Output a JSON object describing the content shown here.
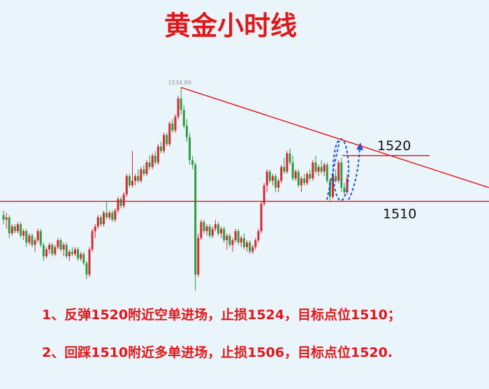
{
  "chart_data": {
    "type": "candlestick",
    "title": "黄金小时线",
    "annotations": [
      "1、反弹1520附近空单进场，止损1524，目标点位1510；",
      "2、回踩1510附近多单进场，止损1506，目标点位1520."
    ],
    "up_color": "#d9272e",
    "down_color": "#2e9e3e",
    "ylim": [
      1469,
      1554
    ],
    "peak_label": 1534.89,
    "levels": [
      1520,
      1510
    ],
    "trendline": {
      "x": [
        62,
        169.5
      ],
      "y": [
        1534.89,
        1513
      ]
    },
    "ohlc": [
      [
        1507,
        1508,
        1505,
        1506
      ],
      [
        1506,
        1507.5,
        1504,
        1506.5
      ],
      [
        1506.5,
        1507,
        1502,
        1503
      ],
      [
        1503,
        1505,
        1502.5,
        1504.5
      ],
      [
        1504.5,
        1505,
        1503,
        1503.5
      ],
      [
        1503.5,
        1505.5,
        1503,
        1505
      ],
      [
        1505,
        1505.5,
        1502,
        1502.5
      ],
      [
        1502.5,
        1504,
        1501.5,
        1503.5
      ],
      [
        1503.5,
        1504,
        1500,
        1501
      ],
      [
        1501,
        1503,
        1500.5,
        1502.5
      ],
      [
        1502.5,
        1503,
        1500,
        1500.5
      ],
      [
        1500.5,
        1502,
        1499,
        1501.5
      ],
      [
        1501.5,
        1504,
        1501,
        1503.5
      ],
      [
        1503.5,
        1504,
        1500,
        1500.5
      ],
      [
        1500.5,
        1501,
        1497,
        1498
      ],
      [
        1498,
        1500,
        1497.5,
        1499.5
      ],
      [
        1499.5,
        1501,
        1498.5,
        1500.5
      ],
      [
        1500.5,
        1501,
        1498,
        1498.5
      ],
      [
        1498.5,
        1500.5,
        1498,
        1500
      ],
      [
        1500,
        1502,
        1499.5,
        1501.5
      ],
      [
        1501.5,
        1502,
        1499,
        1499.5
      ],
      [
        1499.5,
        1501,
        1498,
        1500.5
      ],
      [
        1500.5,
        1501,
        1497.5,
        1498
      ],
      [
        1498,
        1499.5,
        1497,
        1499
      ],
      [
        1499,
        1500,
        1498,
        1498.5
      ],
      [
        1498.5,
        1500,
        1498,
        1499.5
      ],
      [
        1499.5,
        1500,
        1497,
        1497.5
      ],
      [
        1497.5,
        1499,
        1497,
        1498.5
      ],
      [
        1498.5,
        1499,
        1496,
        1496.5
      ],
      [
        1496.5,
        1497,
        1493,
        1494
      ],
      [
        1494,
        1500,
        1493.5,
        1499.5
      ],
      [
        1499.5,
        1504,
        1499,
        1503.5
      ],
      [
        1503.5,
        1505,
        1502,
        1504.5
      ],
      [
        1504.5,
        1507,
        1504,
        1506.5
      ],
      [
        1506.5,
        1507,
        1504.5,
        1505
      ],
      [
        1505,
        1508,
        1504.5,
        1507.5
      ],
      [
        1507.5,
        1510,
        1506,
        1506.5
      ],
      [
        1506.5,
        1508,
        1506,
        1507.5
      ],
      [
        1507.5,
        1508,
        1505.5,
        1506
      ],
      [
        1506,
        1508.5,
        1505.5,
        1508
      ],
      [
        1508,
        1511,
        1507.5,
        1510.5
      ],
      [
        1510.5,
        1511,
        1508.5,
        1509
      ],
      [
        1509,
        1512,
        1508.5,
        1511.5
      ],
      [
        1511.5,
        1516,
        1511,
        1515.5
      ],
      [
        1515.5,
        1516,
        1513,
        1513.5
      ],
      [
        1513.5,
        1521,
        1513,
        1514.5
      ],
      [
        1514.5,
        1516,
        1513.5,
        1515.5
      ],
      [
        1515.5,
        1517,
        1514,
        1514.5
      ],
      [
        1514.5,
        1517.5,
        1514,
        1517
      ],
      [
        1517,
        1518,
        1515.5,
        1516
      ],
      [
        1516,
        1519,
        1515.5,
        1518.5
      ],
      [
        1518.5,
        1520,
        1517,
        1517.5
      ],
      [
        1517.5,
        1520.5,
        1517,
        1520
      ],
      [
        1520,
        1521,
        1518,
        1518.5
      ],
      [
        1518.5,
        1522.5,
        1518,
        1522
      ],
      [
        1522,
        1523,
        1520.5,
        1521
      ],
      [
        1521,
        1525,
        1520.5,
        1524.5
      ],
      [
        1524.5,
        1525,
        1522,
        1522.5
      ],
      [
        1522.5,
        1527.5,
        1522,
        1527
      ],
      [
        1527,
        1528,
        1525,
        1525.5
      ],
      [
        1525.5,
        1529,
        1525,
        1528.5
      ],
      [
        1528.5,
        1533,
        1528,
        1532.5
      ],
      [
        1532.5,
        1534.89,
        1529,
        1530
      ],
      [
        1530,
        1531,
        1526,
        1526.5
      ],
      [
        1526.5,
        1528,
        1523,
        1524
      ],
      [
        1524,
        1525,
        1518,
        1519
      ],
      [
        1519,
        1520,
        1517,
        1518
      ],
      [
        1518,
        1518.5,
        1490.5,
        1494
      ],
      [
        1494,
        1503,
        1493.5,
        1502
      ],
      [
        1502,
        1506,
        1501.5,
        1505.5
      ],
      [
        1505.5,
        1506,
        1503,
        1503.5
      ],
      [
        1503.5,
        1505,
        1502.5,
        1504.5
      ],
      [
        1504.5,
        1505,
        1502,
        1502.5
      ],
      [
        1502.5,
        1504.5,
        1502,
        1504
      ],
      [
        1504,
        1506,
        1503.5,
        1505
      ],
      [
        1505,
        1505.5,
        1502.5,
        1503
      ],
      [
        1503,
        1504.5,
        1502,
        1504
      ],
      [
        1504,
        1504.5,
        1501,
        1501.5
      ],
      [
        1501.5,
        1503,
        1499.5,
        1502.5
      ],
      [
        1502.5,
        1503,
        1500,
        1500.5
      ],
      [
        1500.5,
        1502,
        1499,
        1501.5
      ],
      [
        1501.5,
        1504,
        1501,
        1503.5
      ],
      [
        1503.5,
        1504,
        1500.5,
        1501
      ],
      [
        1501,
        1502.5,
        1500,
        1502
      ],
      [
        1502,
        1503,
        1499.5,
        1500
      ],
      [
        1500,
        1501.5,
        1499,
        1501
      ],
      [
        1501,
        1501.5,
        1498.5,
        1499
      ],
      [
        1499,
        1500.5,
        1498.5,
        1500
      ],
      [
        1500,
        1502,
        1499.5,
        1501.5
      ],
      [
        1501.5,
        1504,
        1501,
        1503.5
      ],
      [
        1503.5,
        1510,
        1503,
        1509.5
      ],
      [
        1509.5,
        1514,
        1509,
        1513.5
      ],
      [
        1513.5,
        1517,
        1512,
        1516.5
      ],
      [
        1516.5,
        1517,
        1514,
        1514.5
      ],
      [
        1514.5,
        1516,
        1513.5,
        1515.5
      ],
      [
        1515.5,
        1516,
        1512,
        1513
      ],
      [
        1513,
        1515,
        1512,
        1514.5
      ],
      [
        1514.5,
        1518,
        1514,
        1517.5
      ],
      [
        1517.5,
        1519.5,
        1516,
        1516.5
      ],
      [
        1516.5,
        1521,
        1516,
        1520.5
      ],
      [
        1520.5,
        1521.5,
        1518,
        1518.5
      ],
      [
        1518.5,
        1520,
        1514.5,
        1515
      ],
      [
        1515,
        1517,
        1514.5,
        1516.5
      ],
      [
        1516.5,
        1517,
        1513,
        1513.5
      ],
      [
        1513.5,
        1515.5,
        1512,
        1515
      ],
      [
        1515,
        1516,
        1513.5,
        1514
      ],
      [
        1514,
        1516.5,
        1513.5,
        1516
      ],
      [
        1516,
        1517,
        1514.5,
        1515
      ],
      [
        1515,
        1519,
        1514.5,
        1518.5
      ],
      [
        1518.5,
        1520,
        1516,
        1516.5
      ],
      [
        1516.5,
        1518,
        1515.5,
        1517.5
      ],
      [
        1517.5,
        1519,
        1516,
        1516.5
      ],
      [
        1516.5,
        1518.5,
        1515.5,
        1518
      ],
      [
        1518,
        1518.5,
        1514,
        1514.5
      ],
      [
        1514.5,
        1515,
        1510,
        1511
      ],
      [
        1511,
        1516,
        1510.5,
        1515.5
      ],
      [
        1515.5,
        1517,
        1514,
        1514.5
      ],
      [
        1514.5,
        1519,
        1514,
        1518.5
      ],
      [
        1518.5,
        1519.5,
        1512,
        1513
      ],
      [
        1513,
        1514,
        1511.5,
        1512
      ],
      [
        1512,
        1516,
        1511.5,
        1515
      ]
    ]
  }
}
